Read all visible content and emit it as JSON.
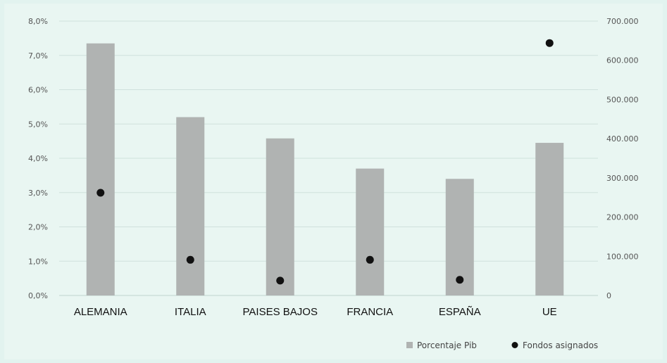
{
  "chart_data": {
    "type": "bar",
    "categories": [
      "ALEMANIA",
      "ITALIA",
      "PAISES BAJOS",
      "FRANCIA",
      "ESPAÑA",
      "UE"
    ],
    "series": [
      {
        "name": "Porcentaje Pib",
        "kind": "bar",
        "axis": "left",
        "color": "#b0b3b2",
        "values": [
          7.35,
          5.2,
          4.58,
          3.7,
          3.4,
          4.45
        ]
      },
      {
        "name": "Fondos asignados",
        "kind": "scatter",
        "axis": "right",
        "color": "#111111",
        "values": [
          262000,
          91000,
          38000,
          91000,
          40000,
          644000
        ]
      }
    ],
    "y_left": {
      "min": 0,
      "max": 8,
      "ticks": [
        0,
        1,
        2,
        3,
        4,
        5,
        6,
        7,
        8
      ],
      "tick_labels": [
        "0,0%",
        "1,0%",
        "2,0%",
        "3,0%",
        "4,0%",
        "5,0%",
        "6,0%",
        "7,0%",
        "8,0%"
      ]
    },
    "y_right": {
      "min": 0,
      "max": 700000,
      "ticks": [
        0,
        100000,
        200000,
        300000,
        400000,
        500000,
        600000,
        700000
      ],
      "tick_labels": [
        "0",
        "100.000",
        "200.000",
        "300.000",
        "400.000",
        "500.000",
        "600.000",
        "700.000"
      ]
    },
    "grid": true,
    "gridline_color": "#cfe1dc",
    "legend_position": "bottom-right",
    "title": "",
    "xlabel": "",
    "ylabel": ""
  }
}
